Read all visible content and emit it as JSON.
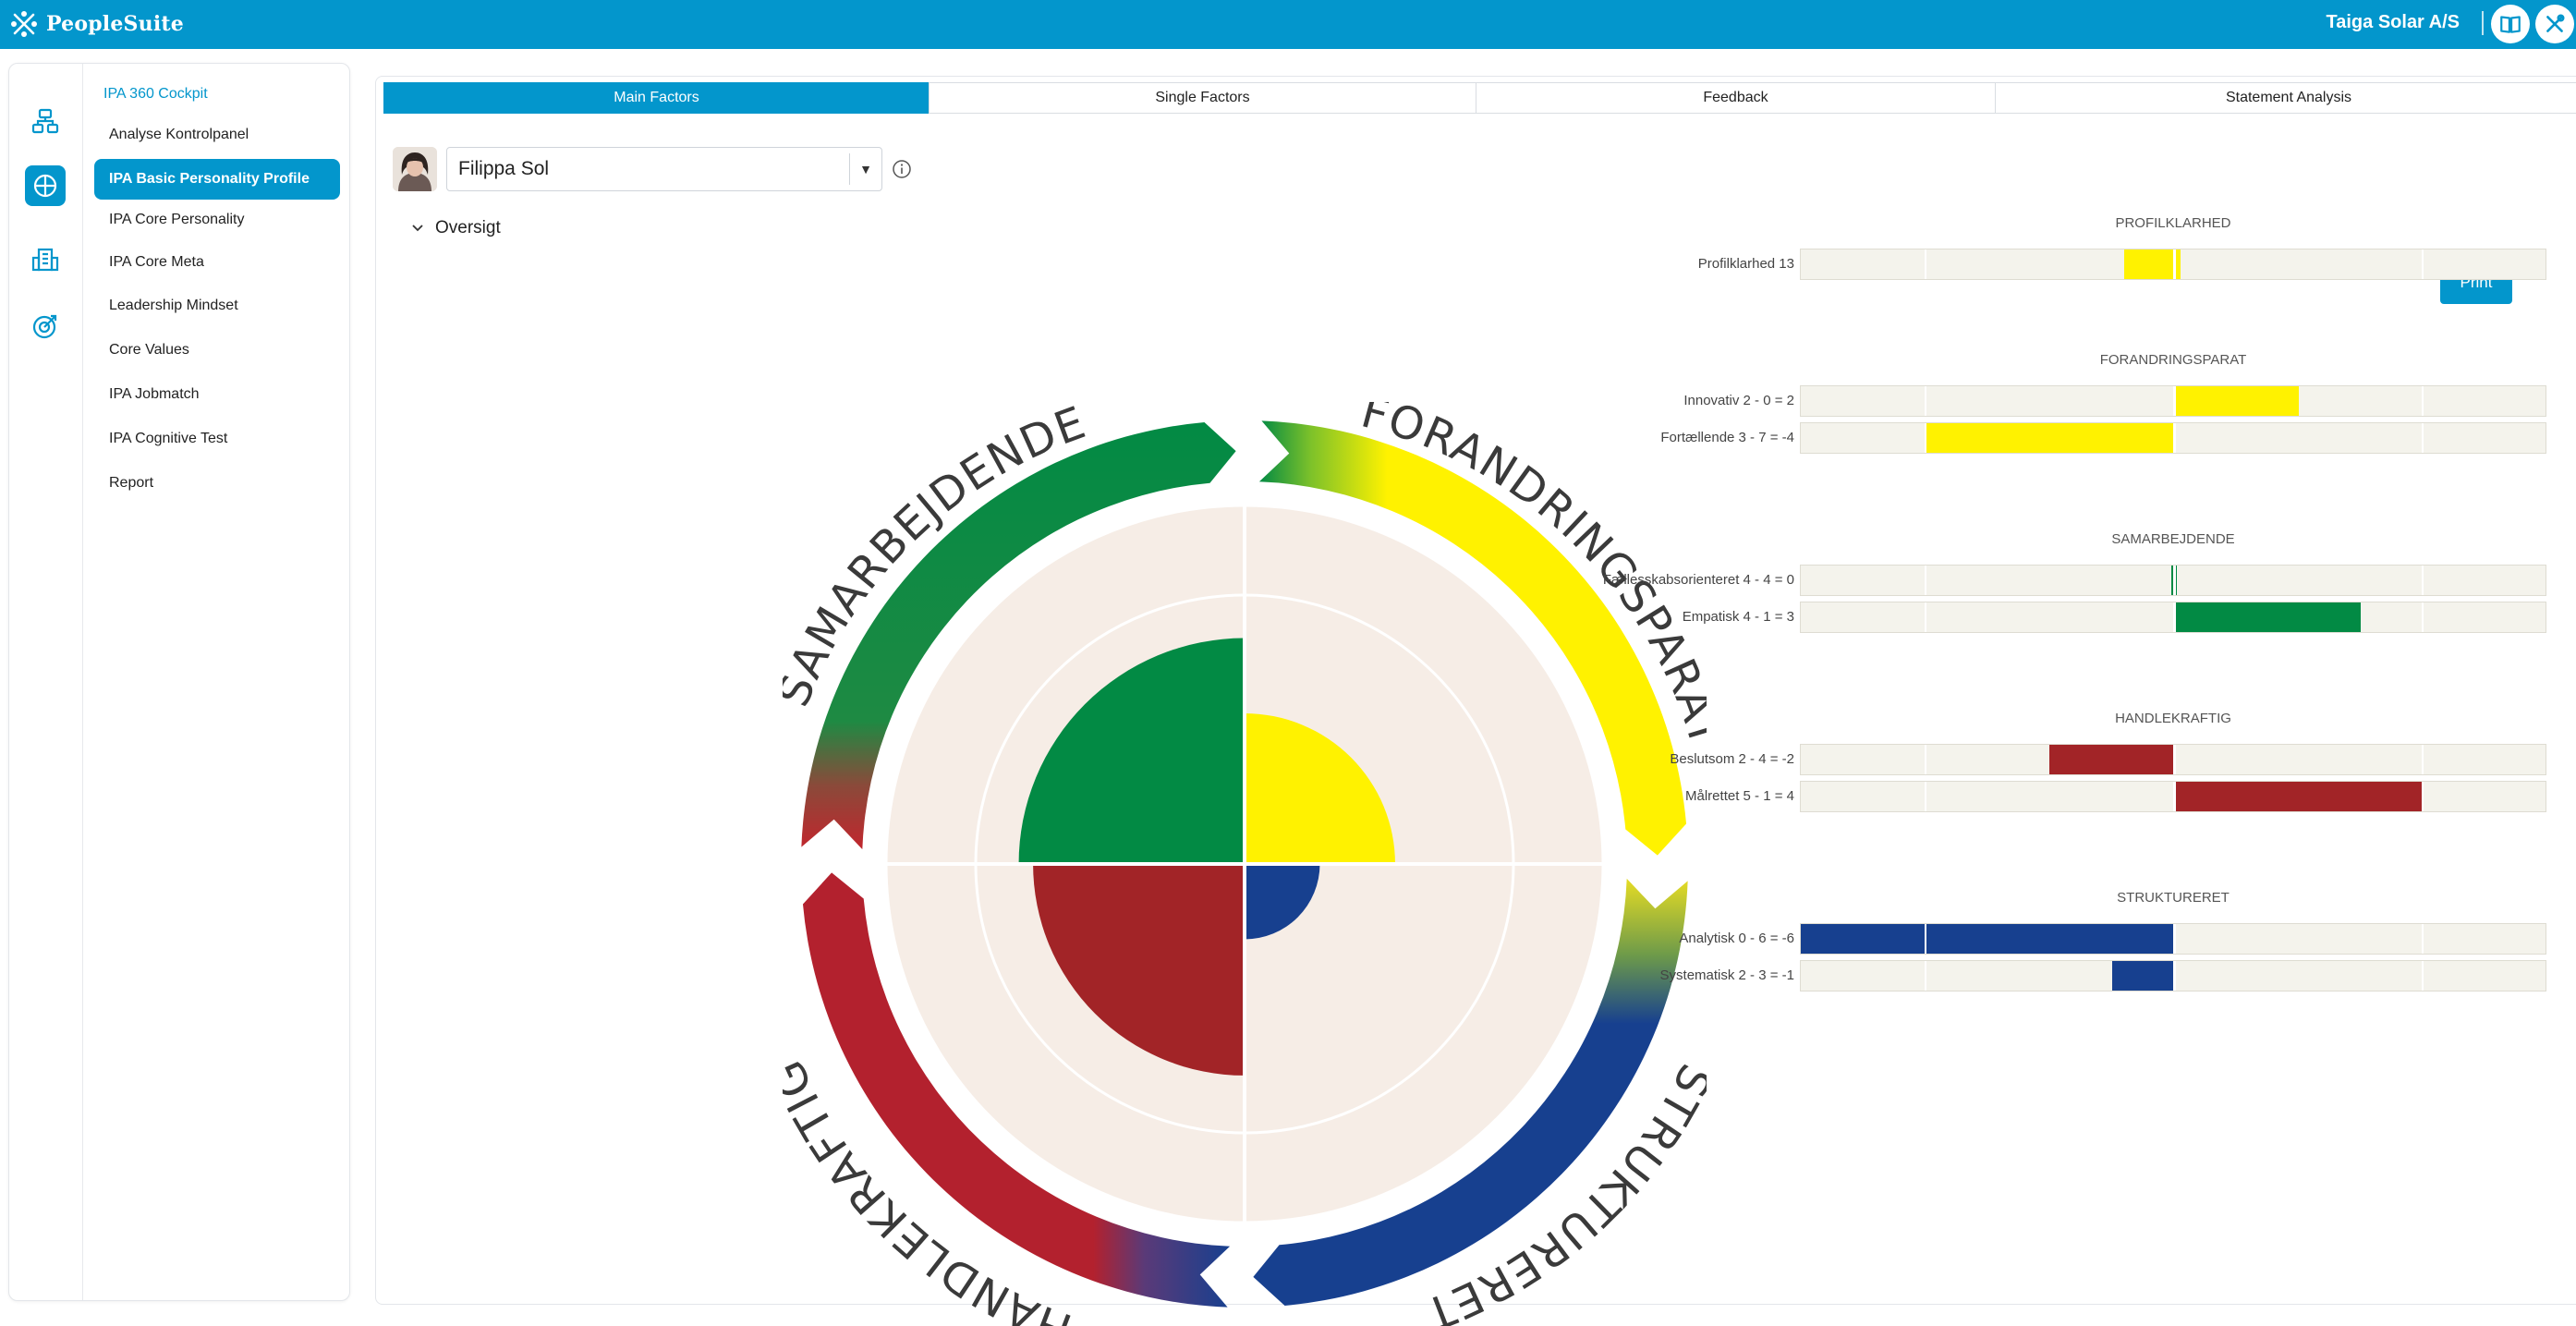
{
  "brand": {
    "name": "PeopleSuite"
  },
  "header": {
    "company": "Taiga Solar A/S",
    "icons": [
      "book-icon",
      "tools-icon"
    ]
  },
  "rail": {
    "icons": [
      "org-chart-icon",
      "globe-icon",
      "building-icon",
      "target-icon"
    ],
    "active_index": 1
  },
  "nav": {
    "heading": "IPA 360 Cockpit",
    "items": [
      {
        "label": "Analyse Kontrolpanel",
        "active": false
      },
      {
        "label": "IPA Basic Personality Profile",
        "active": true
      },
      {
        "label": "IPA Core Personality",
        "active": false
      },
      {
        "label": "IPA Core Meta",
        "active": false
      },
      {
        "label": "Leadership Mindset",
        "active": false
      },
      {
        "label": "Core Values",
        "active": false
      },
      {
        "label": "IPA Jobmatch",
        "active": false
      },
      {
        "label": "IPA Cognitive Test",
        "active": false
      },
      {
        "label": "Report",
        "active": false
      }
    ]
  },
  "tabs": [
    {
      "label": "Main Factors",
      "active": true
    },
    {
      "label": "Single Factors",
      "active": false
    },
    {
      "label": "Feedback",
      "active": false
    },
    {
      "label": "Statement Analysis",
      "active": false
    }
  ],
  "person": {
    "name": "Filippa Sol"
  },
  "section": {
    "overview": "Oversigt"
  },
  "actions": {
    "print": "Print"
  },
  "colors": {
    "accent": "#0396cc",
    "forandringsparat": "#fff200",
    "samarbejdende": "#028a44",
    "handlekraftig": "#a22427",
    "struktureret": "#17408f"
  },
  "chart_data": [
    {
      "type": "radial",
      "quadrants": [
        {
          "name": "SAMARBEJDENDE",
          "level": 0.63,
          "color": "#028a44"
        },
        {
          "name": "FORANDRINGSPARAT",
          "level": 0.42,
          "color": "#fff200"
        },
        {
          "name": "STRUKTURERET",
          "level": 0.21,
          "color": "#17408f"
        },
        {
          "name": "HANDLEKRAFTIG",
          "level": 0.59,
          "color": "#a22427"
        }
      ]
    },
    {
      "type": "bar",
      "xlim": [
        -6,
        6
      ],
      "groups": [
        {
          "title": "PROFILKLARHED",
          "color": "#fff200",
          "rows": [
            {
              "label": "Profilklarhed 13",
              "from": -0.8,
              "to": 0.1
            }
          ]
        },
        {
          "title": "FORANDRINGSPARAT",
          "color": "#fff200",
          "rows": [
            {
              "label": "Innovativ 2 - 0 = 2",
              "from": 0,
              "to": 2
            },
            {
              "label": "Fortællende 3 - 7 = -4",
              "from": -4,
              "to": 0
            }
          ]
        },
        {
          "title": "SAMARBEJDENDE",
          "color": "#028a44",
          "rows": [
            {
              "label": "Fællesskabsorienteret 4 - 4 = 0",
              "from": -0.05,
              "to": 0.05
            },
            {
              "label": "Empatisk 4 - 1 = 3",
              "from": 0,
              "to": 3
            }
          ]
        },
        {
          "title": "HANDLEKRAFTIG",
          "color": "#a22427",
          "rows": [
            {
              "label": "Beslutsom 2 - 4 = -2",
              "from": -2,
              "to": 0
            },
            {
              "label": "Målrettet 5 - 1 = 4",
              "from": 0,
              "to": 4
            }
          ]
        },
        {
          "title": "STRUKTURERET",
          "color": "#17408f",
          "rows": [
            {
              "label": "Analytisk 0 - 6 = -6",
              "from": -6,
              "to": 0
            },
            {
              "label": "Systematisk 2 - 3 = -1",
              "from": -1,
              "to": 0
            }
          ]
        }
      ]
    }
  ]
}
